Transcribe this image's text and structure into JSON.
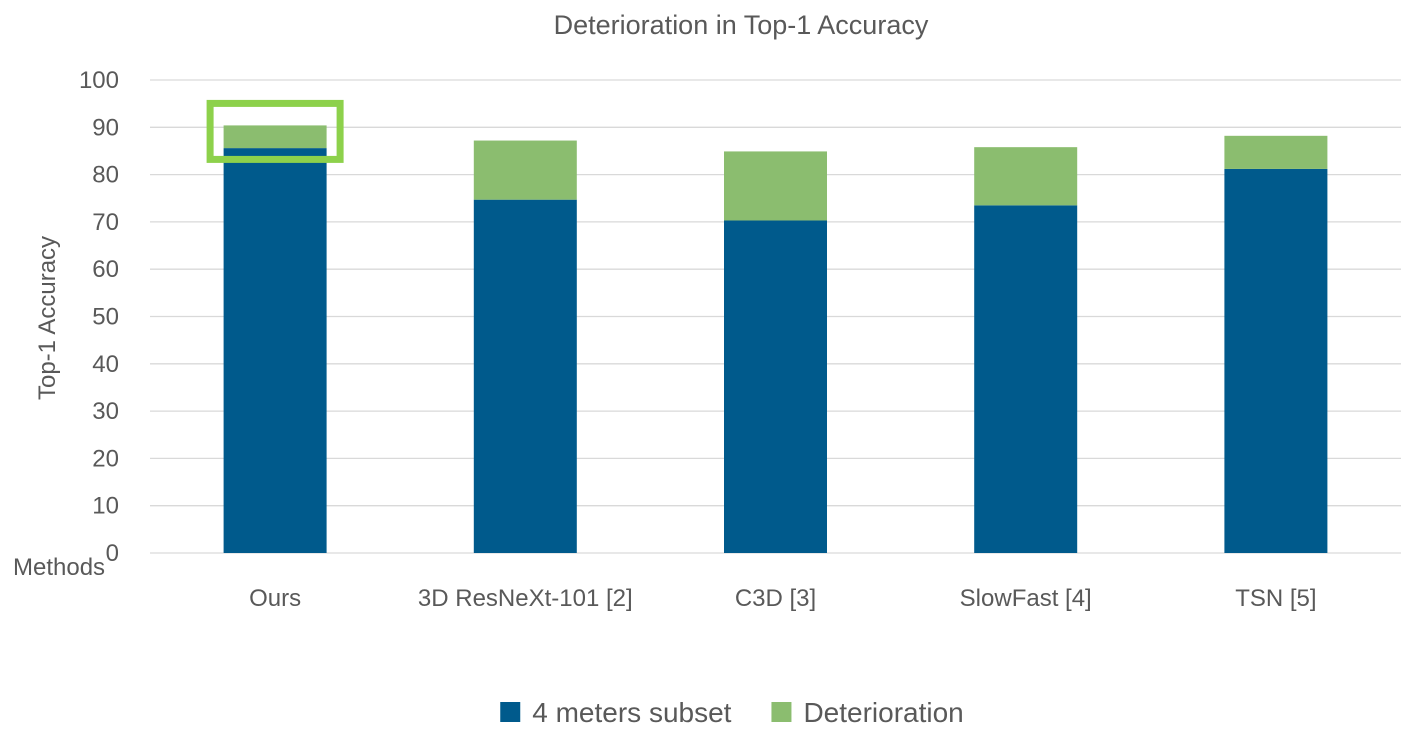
{
  "chart_data": {
    "type": "bar",
    "stacked": true,
    "title": "Deterioration in Top-1 Accuracy",
    "xlabel": "Methods",
    "ylabel": "Top-1 Accuracy",
    "ylim": [
      0,
      100
    ],
    "yticks": [
      0,
      10,
      20,
      30,
      40,
      50,
      60,
      70,
      80,
      90,
      100
    ],
    "grid": true,
    "legend_position": "bottom",
    "categories": [
      "Ours",
      "3D ResNeXt-101 [2]",
      "C3D [3]",
      "SlowFast [4]",
      "TSN [5]"
    ],
    "series": [
      {
        "name": "4 meters subset",
        "color": "#005A8C",
        "values": [
          85.6,
          74.7,
          70.3,
          73.5,
          81.2
        ]
      },
      {
        "name": "Deterioration",
        "color": "#8BBD6F",
        "values": [
          4.8,
          12.5,
          14.6,
          12.3,
          7.0
        ]
      }
    ],
    "highlight": {
      "category": "Ours",
      "color": "#8DD14B"
    }
  }
}
